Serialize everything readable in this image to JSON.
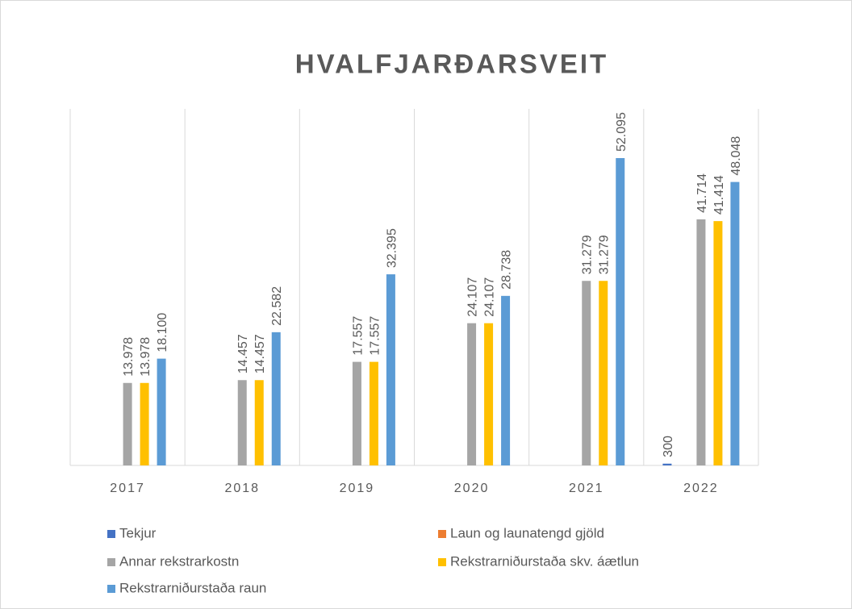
{
  "chart_data": {
    "type": "bar",
    "title": "HVALFJARÐARSVEIT",
    "categories": [
      "2017",
      "2018",
      "2019",
      "2020",
      "2021",
      "2022"
    ],
    "series": [
      {
        "name": "Tekjur",
        "color": "#4472c4",
        "values": [
          null,
          null,
          null,
          null,
          null,
          300
        ],
        "value_labels": [
          null,
          null,
          null,
          null,
          null,
          "300"
        ]
      },
      {
        "name": "Laun og launatengd gjöld",
        "color": "#ed7d31",
        "values": [
          null,
          null,
          null,
          null,
          null,
          null
        ],
        "value_labels": [
          null,
          null,
          null,
          null,
          null,
          null
        ]
      },
      {
        "name": "Annar rekstrarkostn",
        "color": "#a5a5a5",
        "values": [
          13978,
          14457,
          17557,
          24107,
          31279,
          41714
        ],
        "value_labels": [
          "13.978",
          "14.457",
          "17.557",
          "24.107",
          "31.279",
          "41.714"
        ]
      },
      {
        "name": "Rekstrarniðurstaða skv. áætlun",
        "color": "#ffc000",
        "values": [
          13978,
          14457,
          17557,
          24107,
          31279,
          41414
        ],
        "value_labels": [
          "13.978",
          "14.457",
          "17.557",
          "24.107",
          "31.279",
          "41.414"
        ]
      },
      {
        "name": "Rekstrarniðurstaða raun",
        "color": "#5b9bd5",
        "values": [
          18100,
          22582,
          32395,
          28738,
          52095,
          48048
        ],
        "value_labels": [
          "18.100",
          "22.582",
          "32.395",
          "28.738",
          "52.095",
          "48.048"
        ]
      }
    ],
    "legend": "bottom"
  }
}
